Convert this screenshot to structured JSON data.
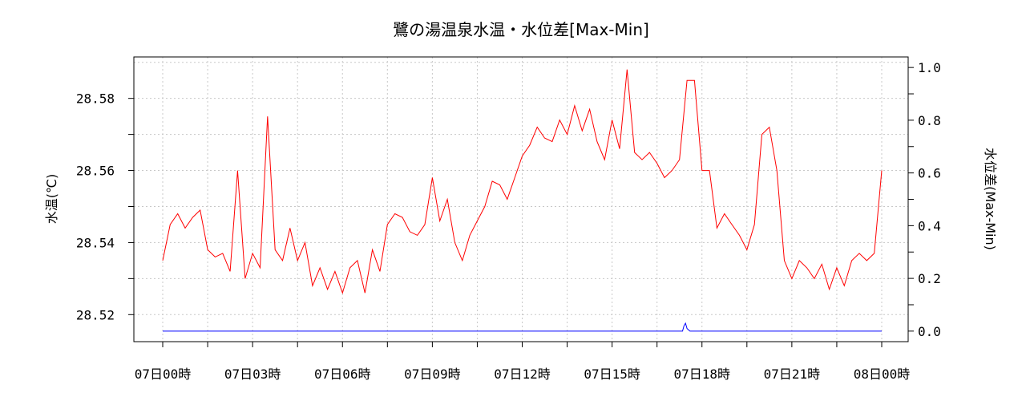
{
  "chart_data": {
    "type": "line",
    "title": "鷺の湯温泉水温・水位差[Max-Min]",
    "ylabel_left": "水温(℃)",
    "ylabel_right": "水位差(Max-Min)",
    "x_tick_labels": [
      "07日00時",
      "07日03時",
      "07日06時",
      "07日09時",
      "07日12時",
      "07日15時",
      "07日18時",
      "07日21時",
      "08日00時"
    ],
    "x_range_hours": [
      0,
      24
    ],
    "y_left_ticks": [
      28.52,
      28.54,
      28.56,
      28.58
    ],
    "y_left_lim": [
      28.5125,
      28.5915
    ],
    "y_right_ticks": [
      "0.0",
      "0.2",
      "0.4",
      "0.6",
      "0.8",
      "1.0"
    ],
    "y_right_lim": [
      -0.04,
      1.04
    ],
    "grid": true,
    "series": [
      {
        "axis": "left",
        "color": "#ff0000",
        "x": [
          0.0,
          0.25,
          0.5,
          0.75,
          1.0,
          1.25,
          1.5,
          1.75,
          2.0,
          2.25,
          2.5,
          2.75,
          3.0,
          3.25,
          3.5,
          3.75,
          4.0,
          4.25,
          4.5,
          4.75,
          5.0,
          5.25,
          5.5,
          5.75,
          6.0,
          6.25,
          6.5,
          6.75,
          7.0,
          7.25,
          7.5,
          7.75,
          8.0,
          8.25,
          8.5,
          8.75,
          9.0,
          9.25,
          9.5,
          9.75,
          10.0,
          10.25,
          10.5,
          10.75,
          11.0,
          11.25,
          11.5,
          11.75,
          12.0,
          12.25,
          12.5,
          12.75,
          13.0,
          13.25,
          13.5,
          13.75,
          14.0,
          14.25,
          14.5,
          14.75,
          15.0,
          15.25,
          15.5,
          15.75,
          16.0,
          16.25,
          16.5,
          16.75,
          17.0,
          17.25,
          17.5,
          17.75,
          18.0,
          18.25,
          18.5,
          18.75,
          19.0,
          19.25,
          19.5,
          19.75,
          20.0,
          20.25,
          20.5,
          20.75,
          21.0,
          21.25,
          21.5,
          21.75,
          22.0,
          22.25,
          22.5,
          22.75,
          23.0,
          23.25,
          23.5,
          23.75,
          24.0
        ],
        "y": [
          28.535,
          28.545,
          28.548,
          28.544,
          28.547,
          28.549,
          28.538,
          28.536,
          28.537,
          28.532,
          28.56,
          28.53,
          28.537,
          28.533,
          28.575,
          28.538,
          28.535,
          28.544,
          28.535,
          28.54,
          28.528,
          28.533,
          28.527,
          28.532,
          28.526,
          28.533,
          28.535,
          28.526,
          28.538,
          28.532,
          28.545,
          28.548,
          28.547,
          28.543,
          28.542,
          28.545,
          28.558,
          28.546,
          28.552,
          28.54,
          28.535,
          28.542,
          28.546,
          28.55,
          28.557,
          28.556,
          28.552,
          28.558,
          28.564,
          28.567,
          28.572,
          28.569,
          28.568,
          28.574,
          28.57,
          28.578,
          28.571,
          28.577,
          28.568,
          28.563,
          28.574,
          28.566,
          28.588,
          28.565,
          28.563,
          28.565,
          28.562,
          28.558,
          28.56,
          28.563,
          28.585,
          28.585,
          28.56,
          28.56,
          28.544,
          28.548,
          28.545,
          28.542,
          28.538,
          28.545,
          28.57,
          28.572,
          28.56,
          28.535,
          28.53,
          28.535,
          28.533,
          28.53,
          28.534,
          28.527,
          28.533,
          28.528,
          28.535,
          28.537,
          28.535,
          28.537,
          28.56
        ]
      },
      {
        "axis": "right",
        "color": "#0000ff",
        "x": [
          0.0,
          17.35,
          17.4,
          17.45,
          17.5,
          17.55,
          17.6,
          24.0
        ],
        "y": [
          0.0,
          0.0,
          0.02,
          0.03,
          0.01,
          0.005,
          0.0,
          0.0
        ]
      }
    ]
  }
}
